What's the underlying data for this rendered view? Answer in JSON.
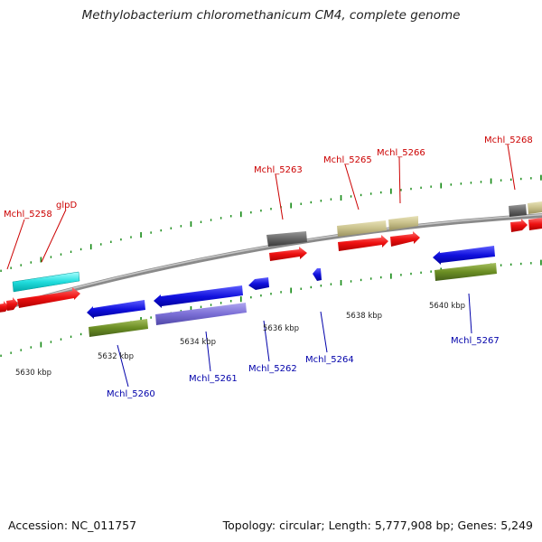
{
  "title": "Methylobacterium chloromethanicum CM4, complete genome",
  "footer": {
    "accession": "Accession: NC_011757",
    "summary": "Topology: circular; Length: 5,777,908 bp; Genes: 5,249"
  },
  "scale_labels": [
    "5630 kbp",
    "5632 kbp",
    "5634 kbp",
    "5636 kbp",
    "5638 kbp",
    "5640 kbp"
  ],
  "gene_labels": {
    "top": [
      "Mchl_5258",
      "glpD",
      "Mchl_5263",
      "Mchl_5265",
      "Mchl_5266",
      "Mchl_5268"
    ],
    "bottom": [
      "Mchl_5260",
      "Mchl_5261",
      "Mchl_5262",
      "Mchl_5264",
      "Mchl_5267"
    ]
  },
  "colors": {
    "forward_cds": "#ee1111",
    "reverse_cds": "#1010dd",
    "rna": "#22dddd",
    "khaki": "#c8c08a",
    "gray": "#666666",
    "olive": "#6b8e23",
    "slate": "#7b6fd6",
    "tick": "#118811"
  }
}
